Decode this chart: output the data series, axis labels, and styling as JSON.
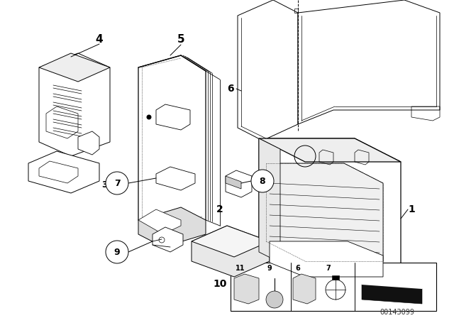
{
  "bg_color": "#ffffff",
  "line_color": "#000000",
  "fig_width": 6.4,
  "fig_height": 4.48,
  "dpi": 100,
  "diagram_number": "00143099"
}
